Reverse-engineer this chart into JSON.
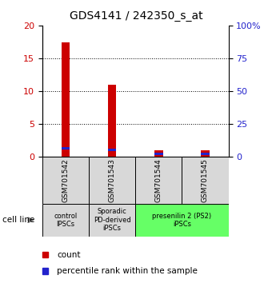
{
  "title": "GDS4141 / 242350_s_at",
  "samples": [
    "GSM701542",
    "GSM701543",
    "GSM701544",
    "GSM701545"
  ],
  "count_values": [
    17.4,
    11.0,
    1.0,
    1.0
  ],
  "percentile_values": [
    6.7,
    5.7,
    2.3,
    2.3
  ],
  "left_ylim": [
    0,
    20
  ],
  "right_ylim": [
    0,
    100
  ],
  "left_yticks": [
    0,
    5,
    10,
    15,
    20
  ],
  "right_yticks": [
    0,
    25,
    50,
    75,
    100
  ],
  "right_yticklabels": [
    "0",
    "25",
    "50",
    "75",
    "100%"
  ],
  "bar_width": 0.18,
  "count_color": "#cc0000",
  "percentile_color": "#2222cc",
  "title_fontsize": 10,
  "groups": [
    {
      "label": "control\nIPSCs",
      "start": 0,
      "end": 1,
      "color": "#d8d8d8"
    },
    {
      "label": "Sporadic\nPD-derived\niPSCs",
      "start": 1,
      "end": 2,
      "color": "#d8d8d8"
    },
    {
      "label": "presenilin 2 (PS2)\niPSCs",
      "start": 2,
      "end": 4,
      "color": "#66ff66"
    }
  ],
  "tick_label_color_left": "#cc0000",
  "tick_label_color_right": "#2222cc",
  "gridline_color": "black",
  "gridline_style": "dotted",
  "gridline_ticks": [
    5,
    10,
    15
  ],
  "sample_box_color": "#d8d8d8",
  "legend_count": "count",
  "legend_percentile": "percentile rank within the sample"
}
